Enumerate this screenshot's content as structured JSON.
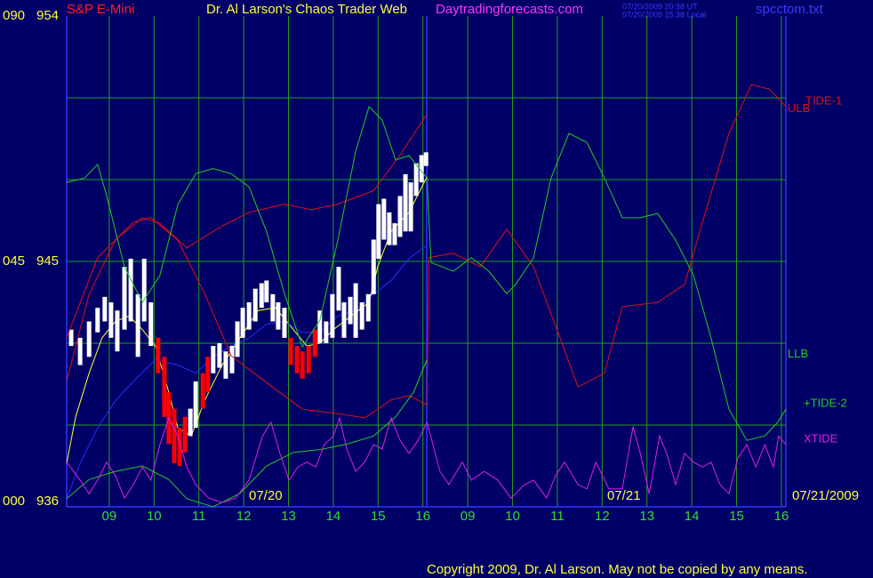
{
  "chart_data": {
    "type": "line",
    "symbol": "S&P E-Mini",
    "title": "Dr. Al Larson's Chaos Trader Web",
    "site": "Daytradingforecasts.com",
    "timestamps": [
      "07/20/2009 20:38 UT",
      "07/20/2009 15:38 Local"
    ],
    "filename": "spcctom.txt",
    "copyright": "Copyright 2009, Dr. Al Larson. May not be copied by any means.",
    "date_labels": [
      "07/20",
      "07/21",
      "07/21/2009"
    ],
    "xlim": [
      0.05,
      16.1
    ],
    "xticks": [
      {
        "value": 1,
        "label": "09"
      },
      {
        "value": 2,
        "label": "10"
      },
      {
        "value": 3,
        "label": "11"
      },
      {
        "value": 4,
        "label": "12"
      },
      {
        "value": 5,
        "label": "13"
      },
      {
        "value": 6,
        "label": "14"
      },
      {
        "value": 7,
        "label": "15"
      },
      {
        "value": 8,
        "label": "16"
      },
      {
        "value": 9,
        "label": "09"
      },
      {
        "value": 10,
        "label": "10"
      },
      {
        "value": 11,
        "label": "11"
      },
      {
        "value": 12,
        "label": "12"
      },
      {
        "value": 13,
        "label": "13"
      },
      {
        "value": 14,
        "label": "14"
      },
      {
        "value": 15,
        "label": "15"
      },
      {
        "value": 16,
        "label": "16"
      }
    ],
    "ylim": [
      936,
      954
    ],
    "yticks": [
      936,
      945,
      954
    ],
    "ygrid": [
      939,
      942,
      948,
      951
    ],
    "y2lim": [
      0,
      90
    ],
    "y2ticks": [
      {
        "value": 0,
        "label": "000"
      },
      {
        "value": 45,
        "label": "045"
      },
      {
        "value": 90,
        "label": "090"
      }
    ],
    "grid": true,
    "grid_color": "#1fa01f",
    "bars": {
      "x": [
        0.15,
        0.35,
        0.55,
        0.74,
        0.9,
        1.04,
        1.18,
        1.34,
        1.48,
        1.64,
        1.78,
        1.93,
        2.09,
        2.23,
        2.33,
        2.45,
        2.57,
        2.69,
        2.81,
        2.93,
        3.09,
        3.2,
        3.32,
        3.46,
        3.6,
        3.74,
        3.86,
        3.98,
        4.12,
        4.26,
        4.4,
        4.51,
        4.65,
        4.77,
        4.91,
        5.05,
        5.19,
        5.31,
        5.45,
        5.59,
        5.7,
        5.84,
        5.98,
        6.12,
        6.24,
        6.38,
        6.5,
        6.64,
        6.78,
        6.9,
        7.01,
        7.13,
        7.25,
        7.37,
        7.49,
        7.61,
        7.73,
        7.85,
        7.97,
        8.07
      ],
      "high": [
        942.5,
        942.2,
        942.8,
        943.3,
        943.7,
        943.5,
        943.2,
        944.8,
        945.1,
        943.8,
        945.1,
        943.5,
        942.2,
        941.5,
        940.2,
        939.6,
        938.9,
        939.3,
        939.6,
        940.6,
        940.9,
        941.5,
        941.9,
        942.0,
        941.7,
        941.9,
        942.8,
        943.3,
        943.5,
        944.0,
        944.2,
        944.3,
        943.8,
        943.5,
        943.3,
        942.2,
        941.9,
        941.7,
        941.9,
        942.5,
        943.2,
        942.8,
        943.8,
        944.8,
        943.5,
        943.7,
        944.2,
        943.5,
        943.8,
        945.8,
        947.1,
        947.3,
        946.8,
        946.4,
        947.4,
        948.2,
        947.9,
        948.6,
        948.9,
        949.0
      ],
      "low": [
        941.9,
        941.2,
        941.5,
        942.4,
        942.8,
        942.2,
        941.7,
        942.5,
        942.8,
        941.5,
        942.8,
        941.9,
        940.9,
        939.3,
        938.3,
        937.6,
        937.5,
        938.0,
        938.6,
        938.9,
        939.6,
        940.2,
        940.9,
        941.1,
        940.7,
        940.9,
        941.5,
        942.2,
        942.5,
        942.8,
        943.3,
        943.5,
        942.8,
        942.5,
        942.2,
        941.2,
        940.9,
        940.7,
        940.9,
        941.5,
        942.0,
        942.0,
        942.2,
        943.2,
        942.2,
        942.7,
        942.2,
        942.5,
        942.8,
        943.8,
        945.1,
        945.8,
        945.6,
        945.6,
        945.9,
        946.1,
        946.1,
        947.4,
        947.9,
        948.5
      ],
      "colors": [
        "#ffffff",
        "#ffffff",
        "#ffffff",
        "#ffffff",
        "#ffffff",
        "#ffffff",
        "#ffffff",
        "#ffffff",
        "#ffffff",
        "#ffffff",
        "#ffffff",
        "#ffffff",
        "#ff0000",
        "#ff0000",
        "#ff0000",
        "#ff0000",
        "#ff0000",
        "#ff0000",
        "#ffffff",
        "#ffffff",
        "#ff0000",
        "#ff0000",
        "#ffffff",
        "#ffffff",
        "#ffffff",
        "#ffffff",
        "#ffffff",
        "#ffffff",
        "#ffffff",
        "#ffffff",
        "#ffffff",
        "#ffffff",
        "#ffffff",
        "#ffffff",
        "#ffffff",
        "#ff0000",
        "#ff0000",
        "#ff0000",
        "#ff0000",
        "#ff0000",
        "#ffffff",
        "#ffffff",
        "#ffffff",
        "#ffffff",
        "#ffffff",
        "#ffffff",
        "#ffffff",
        "#ffffff",
        "#ffffff",
        "#ffffff",
        "#ffffff",
        "#ffffff",
        "#ffffff",
        "#ffffff",
        "#ffffff",
        "#ffffff",
        "#ffffff",
        "#ffffff",
        "#ffffff",
        "#ffffff"
      ]
    },
    "averages": [
      {
        "color": "#ffff33",
        "x": [
          0.05,
          0.25,
          0.55,
          0.84,
          1.14,
          1.44,
          1.74,
          2.03,
          2.33,
          2.53,
          2.83,
          3.13,
          3.52,
          3.92,
          4.32,
          4.71,
          5.11,
          5.41,
          5.7,
          6.0,
          6.4,
          6.8,
          6.99,
          7.29,
          7.69,
          8.09
        ],
        "values": [
          937.6,
          939.3,
          940.9,
          942.2,
          942.8,
          943.0,
          942.5,
          941.9,
          940.2,
          938.9,
          938.6,
          939.9,
          941.2,
          942.2,
          943.2,
          943.3,
          942.5,
          941.9,
          942.0,
          942.5,
          943.0,
          943.5,
          944.8,
          946.1,
          946.8,
          948.1
        ]
      },
      {
        "color": "#2a2aff",
        "x": [
          0.05,
          0.35,
          0.74,
          1.14,
          1.54,
          2.03,
          2.53,
          2.93,
          3.32,
          3.72,
          4.12,
          4.51,
          4.91,
          5.31,
          5.7,
          6.1,
          6.5,
          6.9,
          7.29,
          7.69,
          8.09
        ],
        "values": [
          936.3,
          937.6,
          938.9,
          939.9,
          940.6,
          941.4,
          941.2,
          940.9,
          941.5,
          941.9,
          942.2,
          942.7,
          942.8,
          942.4,
          942.4,
          943.0,
          943.2,
          943.8,
          944.3,
          945.1,
          945.6
        ]
      }
    ],
    "series": [
      {
        "name": "ULB",
        "color": "#e01010",
        "x": [
          0.05,
          0.55,
          1.14,
          1.74,
          2.13,
          2.73,
          3.52,
          4.12,
          4.91,
          5.51,
          6.1,
          6.9,
          7.49,
          8.09
        ],
        "values": [
          940.6,
          943.8,
          945.8,
          946.6,
          946.4,
          945.5,
          946.3,
          946.8,
          947.1,
          946.9,
          947.1,
          947.6,
          948.9,
          950.4
        ]
      },
      {
        "name": "TIDE-1",
        "color": "#e01010",
        "axis": "y2",
        "x": [
          0.05,
          0.74,
          1.54,
          1.93,
          2.53,
          3.13,
          3.72,
          4.51,
          5.31,
          6.1,
          6.7,
          7.29,
          7.69,
          8.09,
          8.13,
          8.68,
          9.28,
          9.87,
          10.47,
          11.06,
          11.46,
          12.05,
          12.45,
          13.24,
          13.84,
          14.24,
          14.83,
          15.33,
          15.73,
          16.1
        ],
        "values": [
          31.0,
          45.7,
          52.2,
          53.0,
          48.9,
          39.1,
          27.7,
          22.8,
          17.9,
          17.1,
          16.3,
          19.6,
          20.4,
          18.7,
          45.7,
          46.5,
          44.0,
          50.9,
          44.0,
          31.0,
          22.0,
          24.5,
          36.7,
          37.5,
          40.8,
          52.2,
          68.5,
          77.4,
          76.6,
          73.4
        ]
      },
      {
        "name": "LLB",
        "color": "#22cc22",
        "x": [
          0.05,
          0.55,
          1.14,
          1.74,
          2.33,
          2.73,
          3.32,
          3.92,
          4.51,
          5.11,
          5.7,
          6.3,
          6.9,
          7.39,
          7.79,
          8.09
        ],
        "values": [
          936.3,
          937.0,
          937.3,
          937.5,
          937.0,
          936.3,
          936.0,
          936.5,
          937.5,
          938.0,
          938.1,
          938.3,
          938.6,
          939.3,
          940.2,
          941.4
        ]
      },
      {
        "name": "+TIDE-2",
        "color": "#22cc22",
        "axis": "y2",
        "x": [
          0.05,
          0.45,
          0.74,
          0.94,
          1.34,
          1.74,
          2.13,
          2.53,
          2.93,
          3.32,
          3.72,
          4.12,
          4.51,
          4.91,
          5.31,
          5.7,
          6.1,
          6.5,
          6.8,
          7.09,
          7.39,
          7.69,
          8.09,
          8.18,
          8.68,
          9.08,
          9.47,
          9.87,
          10.07,
          10.47,
          10.86,
          11.26,
          11.66,
          12.05,
          12.45,
          12.85,
          13.24,
          13.64,
          14.04,
          14.43,
          14.83,
          15.23,
          15.63,
          15.92,
          16.1
        ],
        "values": [
          59.5,
          60.3,
          62.8,
          57.1,
          44.0,
          37.5,
          42.4,
          55.4,
          61.1,
          62.0,
          61.1,
          58.7,
          50.5,
          39.1,
          29.3,
          34.2,
          48.9,
          65.2,
          73.4,
          70.9,
          63.6,
          64.4,
          60.3,
          44.8,
          43.2,
          45.7,
          43.2,
          39.1,
          40.8,
          45.7,
          60.3,
          68.5,
          66.8,
          60.3,
          53.0,
          53.0,
          53.8,
          48.9,
          42.4,
          31.0,
          17.9,
          12.2,
          13.0,
          15.5,
          17.9
        ]
      },
      {
        "name": "XTIDE",
        "color": "#e020e0",
        "axis": "y2",
        "x": [
          0.05,
          0.35,
          0.55,
          0.74,
          0.94,
          1.14,
          1.34,
          1.54,
          1.74,
          1.93,
          2.13,
          2.33,
          2.53,
          2.73,
          2.93,
          3.22,
          3.52,
          3.82,
          4.12,
          4.42,
          4.61,
          4.81,
          5.01,
          5.21,
          5.41,
          5.61,
          5.8,
          6.0,
          6.14,
          6.3,
          6.5,
          6.7,
          6.9,
          7.09,
          7.29,
          7.49,
          7.69,
          7.89,
          8.09,
          8.38,
          8.58,
          8.88,
          9.08,
          9.37,
          9.67,
          9.97,
          10.27,
          10.47,
          10.76,
          10.96,
          11.16,
          11.46,
          11.66,
          11.86,
          12.15,
          12.45,
          12.69,
          12.85,
          13.05,
          13.28,
          13.44,
          13.64,
          13.84,
          14.04,
          14.24,
          14.43,
          14.63,
          14.83,
          15.03,
          15.23,
          15.43,
          15.63,
          15.82,
          15.94,
          16.1
        ],
        "values": [
          8.2,
          4.9,
          2.4,
          4.9,
          8.2,
          5.7,
          1.6,
          4.1,
          7.3,
          4.9,
          11.4,
          16.3,
          13.0,
          7.3,
          4.1,
          1.6,
          0.8,
          1.6,
          4.9,
          13.0,
          15.5,
          9.8,
          4.9,
          7.3,
          8.2,
          7.3,
          11.4,
          13.0,
          16.3,
          10.6,
          6.5,
          8.2,
          11.4,
          10.6,
          16.3,
          12.2,
          9.8,
          12.2,
          15.5,
          6.5,
          4.1,
          8.2,
          4.9,
          6.5,
          4.9,
          1.6,
          4.1,
          4.9,
          1.6,
          5.7,
          8.2,
          4.1,
          3.3,
          8.2,
          3.3,
          3.3,
          14.7,
          9.8,
          2.4,
          13.0,
          9.8,
          4.1,
          9.8,
          8.2,
          7.3,
          8.2,
          4.1,
          2.4,
          9.0,
          11.4,
          7.3,
          11.4,
          7.3,
          13.0,
          11.4
        ]
      }
    ]
  }
}
